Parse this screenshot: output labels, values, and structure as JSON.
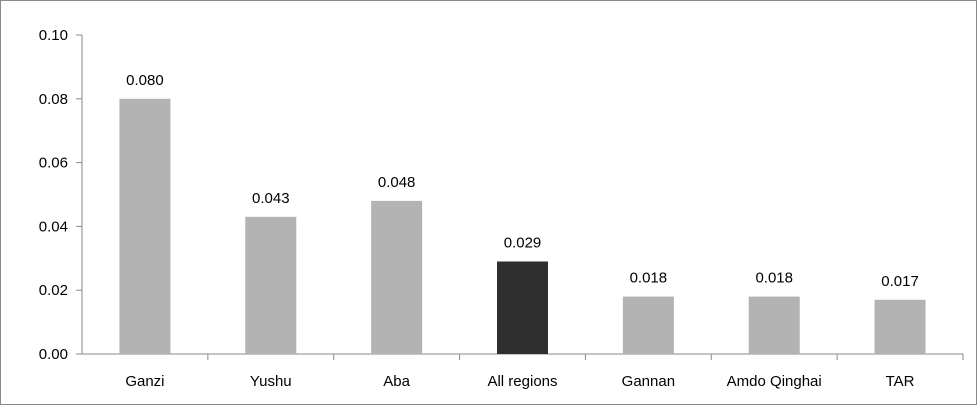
{
  "chart_data": {
    "type": "bar",
    "title": "",
    "xlabel": "",
    "ylabel": "",
    "categories": [
      "Ganzi",
      "Yushu",
      "Aba",
      "All regions",
      "Gannan",
      "Amdo Qinghai",
      "TAR"
    ],
    "values": [
      0.08,
      0.043,
      0.048,
      0.029,
      0.018,
      0.018,
      0.017
    ],
    "data_labels": [
      "0.080",
      "0.043",
      "0.048",
      "0.029",
      "0.018",
      "0.018",
      "0.017"
    ],
    "y_ticks": [
      "0.00",
      "0.02",
      "0.04",
      "0.06",
      "0.08",
      "0.10"
    ],
    "ylim": [
      0,
      0.1
    ],
    "grid": false,
    "legend": "none",
    "colors": {
      "bar_default": "#b3b3b3",
      "bar_highlight": "#2f2f2f",
      "axis": "#8a8a8a"
    },
    "highlight_category": "All regions"
  }
}
